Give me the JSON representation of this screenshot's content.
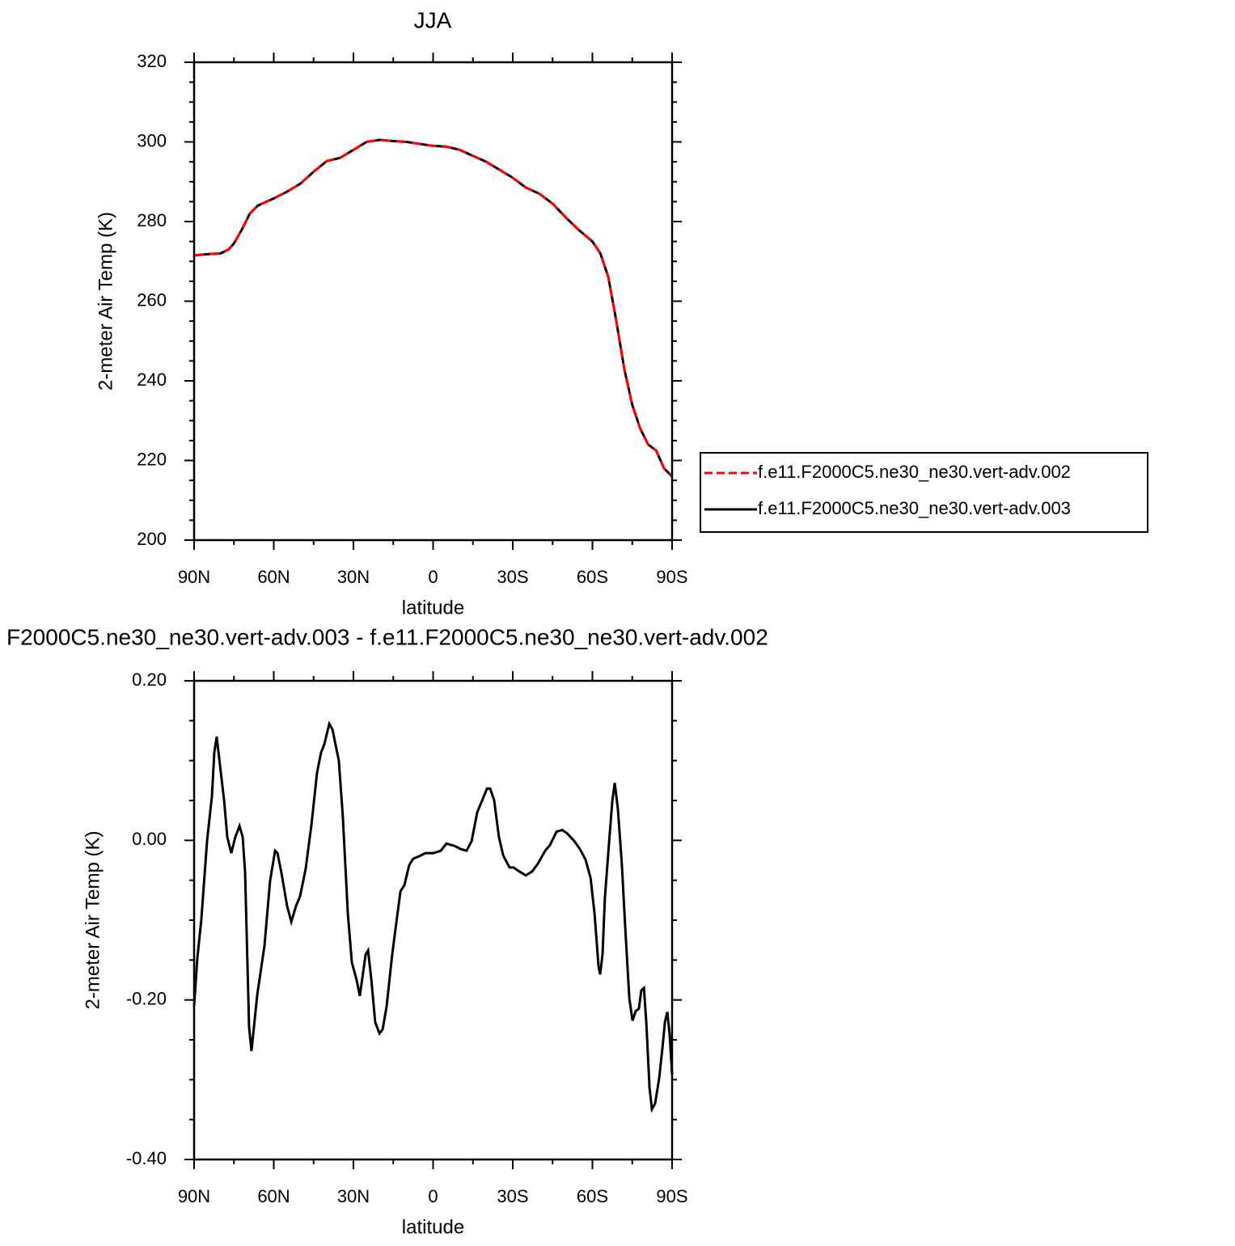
{
  "chart_data": [
    {
      "type": "line",
      "title": "JJA",
      "x_label": "latitude",
      "y_label": "2-meter Air Temp (K)",
      "x": [
        90,
        85,
        80,
        77,
        75,
        72,
        69,
        66,
        60,
        55,
        50,
        45,
        40,
        35,
        30,
        25,
        20,
        15,
        10,
        5,
        0,
        -5,
        -10,
        -15,
        -20,
        -25,
        -30,
        -35,
        -40,
        -45,
        -50,
        -55,
        -60,
        -63,
        -66,
        -69,
        -72,
        -75,
        -78,
        -81,
        -84,
        -87,
        -90
      ],
      "series": [
        {
          "name": "f.e11.F2000C5.ne30_ne30.vert-adv.002",
          "color": "#ff0000",
          "line_style": "dashed",
          "values": [
            271.5,
            271.8,
            272,
            273,
            274.5,
            278,
            282,
            284,
            285.8,
            287.5,
            289.5,
            292.5,
            295.2,
            296,
            298,
            300,
            300.5,
            300.2,
            300,
            299.5,
            299,
            298.8,
            298,
            296.5,
            295,
            293,
            291,
            288.5,
            287,
            284.5,
            281,
            277.8,
            275,
            272,
            266,
            255,
            243,
            234,
            228,
            224,
            222.5,
            218,
            216
          ]
        },
        {
          "name": "f.e11.F2000C5.ne30_ne30.vert-adv.003",
          "color": "#000000",
          "line_style": "solid",
          "values": [
            271.5,
            271.8,
            272,
            273,
            274.5,
            278,
            282,
            284,
            285.8,
            287.5,
            289.5,
            292.5,
            295.2,
            296,
            298,
            300,
            300.5,
            300.2,
            300,
            299.5,
            299,
            298.8,
            298,
            296.5,
            295,
            293,
            291,
            288.5,
            287,
            284.5,
            281,
            277.8,
            275,
            272,
            266,
            255,
            243,
            234,
            228,
            224,
            222.5,
            218,
            216
          ]
        }
      ],
      "xlim": [
        90,
        -90
      ],
      "xticks": [
        {
          "value": 90,
          "label": "90N"
        },
        {
          "value": 60,
          "label": "60N"
        },
        {
          "value": 30,
          "label": "30N"
        },
        0,
        {
          "value": -30,
          "label": "30S"
        },
        {
          "value": -60,
          "label": "60S"
        },
        {
          "value": -90,
          "label": "90S"
        }
      ],
      "ylim": [
        200,
        320
      ],
      "yticks": [
        200,
        220,
        240,
        260,
        280,
        300,
        320
      ],
      "legend": "right"
    },
    {
      "type": "line",
      "title": "F2000C5.ne30_ne30.vert-adv.003 - f.e11.F2000C5.ne30_ne30.vert-adv.002",
      "x_label": "latitude",
      "y_label": "2-meter Air Temp (K)",
      "x": [
        90,
        88.8,
        87.3,
        85.1,
        83.3,
        82.4,
        81.5,
        78.7,
        77.5,
        76,
        74.5,
        72.9,
        71.7,
        70.8,
        69.3,
        68.4,
        66.2,
        63.5,
        61.4,
        59.5,
        58.6,
        57.1,
        55,
        53.4,
        51.6,
        50.1,
        48,
        45.8,
        43.7,
        42.2,
        41,
        39.1,
        37.9,
        35.5,
        34,
        32.1,
        30.6,
        28.8,
        27.6,
        25.4,
        24.5,
        23.3,
        21.8,
        20.2,
        19,
        17.5,
        15.4,
        13.8,
        12.3,
        10.8,
        9,
        7.5,
        4.7,
        2.9,
        0,
        -2.9,
        -5,
        -8.1,
        -10.5,
        -12.6,
        -14.5,
        -16.6,
        -18.7,
        -20.3,
        -21.5,
        -23,
        -24.8,
        -26.4,
        -28.8,
        -30.3,
        -32.5,
        -34.9,
        -37.3,
        -39.5,
        -42.2,
        -44,
        -46.5,
        -48.6,
        -50.4,
        -53.2,
        -55.3,
        -57.4,
        -59.3,
        -60.8,
        -62.3,
        -62.9,
        -63.8,
        -64.7,
        -66.3,
        -67.5,
        -68.4,
        -69.6,
        -71.1,
        -72.4,
        -73.9,
        -75.1,
        -76.3,
        -77.5,
        -78.4,
        -79.4,
        -80.3,
        -81.5,
        -82.4,
        -83.6,
        -85.1,
        -86.4,
        -87.3,
        -88.2,
        -89.1,
        -90
      ],
      "values": [
        -0.208,
        -0.148,
        -0.1,
        0,
        0.055,
        0.11,
        0.13,
        0.05,
        0.004,
        -0.016,
        0.004,
        0.018,
        0.004,
        -0.04,
        -0.234,
        -0.264,
        -0.193,
        -0.132,
        -0.051,
        -0.013,
        -0.016,
        -0.041,
        -0.082,
        -0.102,
        -0.082,
        -0.07,
        -0.036,
        0.02,
        0.085,
        0.11,
        0.12,
        0.146,
        0.139,
        0.1,
        0.03,
        -0.092,
        -0.153,
        -0.175,
        -0.195,
        -0.143,
        -0.138,
        -0.173,
        -0.228,
        -0.242,
        -0.237,
        -0.208,
        -0.143,
        -0.102,
        -0.064,
        -0.056,
        -0.031,
        -0.023,
        -0.019,
        -0.016,
        -0.016,
        -0.013,
        -0.004,
        -0.007,
        -0.011,
        -0.013,
        -0.001,
        0.035,
        0.052,
        0.065,
        0.065,
        0.05,
        0.004,
        -0.019,
        -0.034,
        -0.034,
        -0.039,
        -0.044,
        -0.039,
        -0.029,
        -0.013,
        -0.006,
        0.011,
        0.013,
        0.009,
        -0.001,
        -0.011,
        -0.024,
        -0.047,
        -0.092,
        -0.158,
        -0.168,
        -0.143,
        -0.072,
        -0.001,
        0.05,
        0.072,
        0.039,
        -0.031,
        -0.112,
        -0.198,
        -0.226,
        -0.214,
        -0.211,
        -0.188,
        -0.185,
        -0.229,
        -0.31,
        -0.337,
        -0.33,
        -0.299,
        -0.259,
        -0.228,
        -0.215,
        -0.244,
        -0.294
      ],
      "color": "#000000",
      "xlim": [
        90,
        -90
      ],
      "xticks": [
        {
          "value": 90,
          "label": "90N"
        },
        {
          "value": 60,
          "label": "60N"
        },
        {
          "value": 30,
          "label": "30N"
        },
        0,
        {
          "value": -30,
          "label": "30S"
        },
        {
          "value": -60,
          "label": "60S"
        },
        {
          "value": -90,
          "label": "90S"
        }
      ],
      "ylim": [
        -0.4,
        0.2
      ],
      "yticks": [
        {
          "value": -0.4,
          "label": "-0.40"
        },
        {
          "value": -0.2,
          "label": "-0.20"
        },
        {
          "value": 0,
          "label": "0.00"
        },
        {
          "value": 0.2,
          "label": "0.20"
        }
      ]
    }
  ]
}
